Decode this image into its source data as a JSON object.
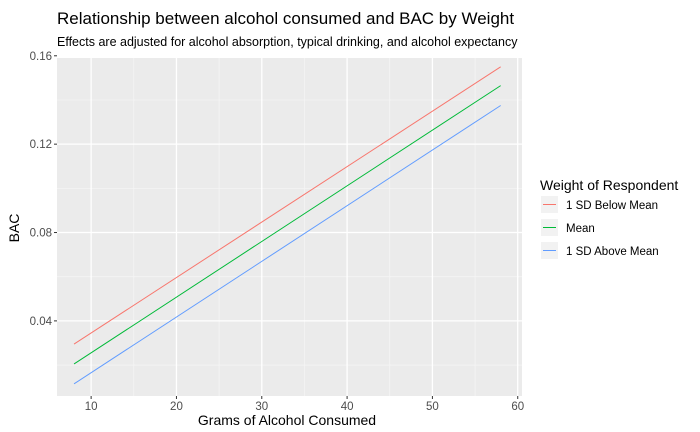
{
  "chart_data": {
    "type": "line",
    "title": "Relationship between alcohol consumed and BAC by Weight",
    "subtitle": "Effects are adjusted for alcohol absorption, typical drinking, and alcohol expectancy",
    "xlabel": "Grams of Alcohol Consumed",
    "ylabel": "BAC",
    "xlim": [
      6,
      60.5
    ],
    "ylim": [
      0.006,
      0.159
    ],
    "xticks": [
      10,
      20,
      30,
      40,
      50,
      60
    ],
    "yticks": [
      0.04,
      0.08,
      0.12,
      0.16
    ],
    "xtick_labels": [
      "10",
      "20",
      "30",
      "40",
      "50",
      "60"
    ],
    "ytick_labels": [
      "0.04",
      "0.08",
      "0.12",
      "0.16"
    ],
    "grid": true,
    "legend": {
      "title": "Weight of Respondent",
      "position": "right"
    },
    "x": [
      8,
      58
    ],
    "series": [
      {
        "name": "1 SD Below Mean",
        "color": "#F8766D",
        "values": [
          0.0295,
          0.155
        ]
      },
      {
        "name": "Mean",
        "color": "#00BA38",
        "values": [
          0.0205,
          0.1465
        ]
      },
      {
        "name": "1 SD Above Mean",
        "color": "#619CFF",
        "values": [
          0.0115,
          0.1375
        ]
      }
    ]
  }
}
